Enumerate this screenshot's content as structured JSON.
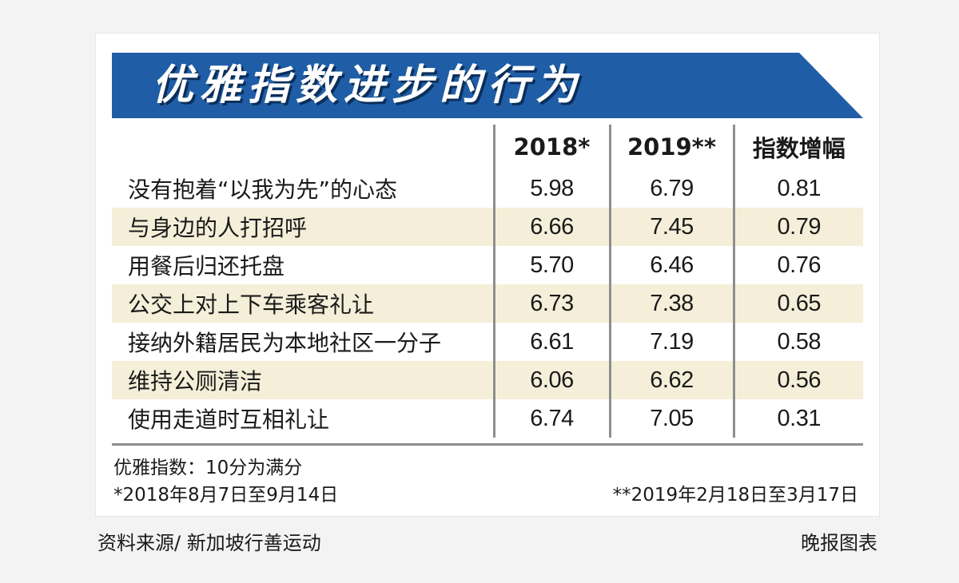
{
  "chart_data": {
    "type": "table",
    "title": "优雅指数进步的行为",
    "columns": [
      "",
      "2018*",
      "2019**",
      "指数增幅"
    ],
    "rows": [
      {
        "label": "没有抱着“以我为先”的心态",
        "v2018": "5.98",
        "v2019": "6.79",
        "increase": "0.81"
      },
      {
        "label": "与身边的人打招呼",
        "v2018": "6.66",
        "v2019": "7.45",
        "increase": "0.79"
      },
      {
        "label": "用餐后归还托盘",
        "v2018": "5.70",
        "v2019": "6.46",
        "increase": "0.76"
      },
      {
        "label": "公交上对上下车乘客礼让",
        "v2018": "6.73",
        "v2019": "7.38",
        "increase": "0.65"
      },
      {
        "label": "接纳外籍居民为本地社区一分子",
        "v2018": "6.61",
        "v2019": "7.19",
        "increase": "0.58"
      },
      {
        "label": "维持公厕清洁",
        "v2018": "6.06",
        "v2019": "6.62",
        "increase": "0.56"
      },
      {
        "label": "使用走道时互相礼让",
        "v2018": "6.74",
        "v2019": "7.05",
        "increase": "0.31"
      }
    ],
    "notes": {
      "scale": "优雅指数：10分为满分",
      "period_2018": "*2018年8月7日至9月14日",
      "period_2019": "**2019年2月18日至3月17日"
    }
  },
  "footer": {
    "source": "资料来源/ 新加坡行善运动",
    "credit": "晚报图表"
  },
  "colors": {
    "banner": "#1f5ea6",
    "row_shade": "#f5efd9",
    "divider": "#8e8e8e"
  }
}
